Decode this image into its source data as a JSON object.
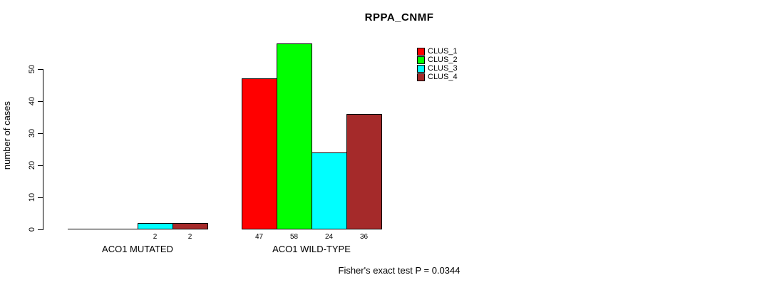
{
  "title": "RPPA_CNMF",
  "chart_data": {
    "type": "bar",
    "title": "RPPA_CNMF",
    "xlabel": "",
    "ylabel": "number of cases",
    "ylim": [
      0,
      50
    ],
    "yticks": [
      0,
      10,
      20,
      30,
      40,
      50
    ],
    "grid": false,
    "legend_position": "top-right",
    "categories": [
      "ACO1 MUTATED",
      "ACO1 WILD-TYPE"
    ],
    "series": [
      {
        "name": "CLUS_1",
        "color": "#FF0000",
        "values": [
          0,
          47
        ]
      },
      {
        "name": "CLUS_2",
        "color": "#00FF00",
        "values": [
          0,
          58
        ]
      },
      {
        "name": "CLUS_3",
        "color": "#00FFFF",
        "values": [
          2,
          24
        ]
      },
      {
        "name": "CLUS_4",
        "color": "#A52A2A",
        "values": [
          2,
          36
        ]
      }
    ],
    "bar_value_labels": [
      [
        "",
        "",
        "2",
        "2"
      ],
      [
        "47",
        "58",
        "24",
        "36"
      ]
    ],
    "annotation": "Fisher's exact test P = 0.0344"
  },
  "colors": {
    "background": "#FFFFFF",
    "axis": "#000000",
    "text": "#000000"
  }
}
